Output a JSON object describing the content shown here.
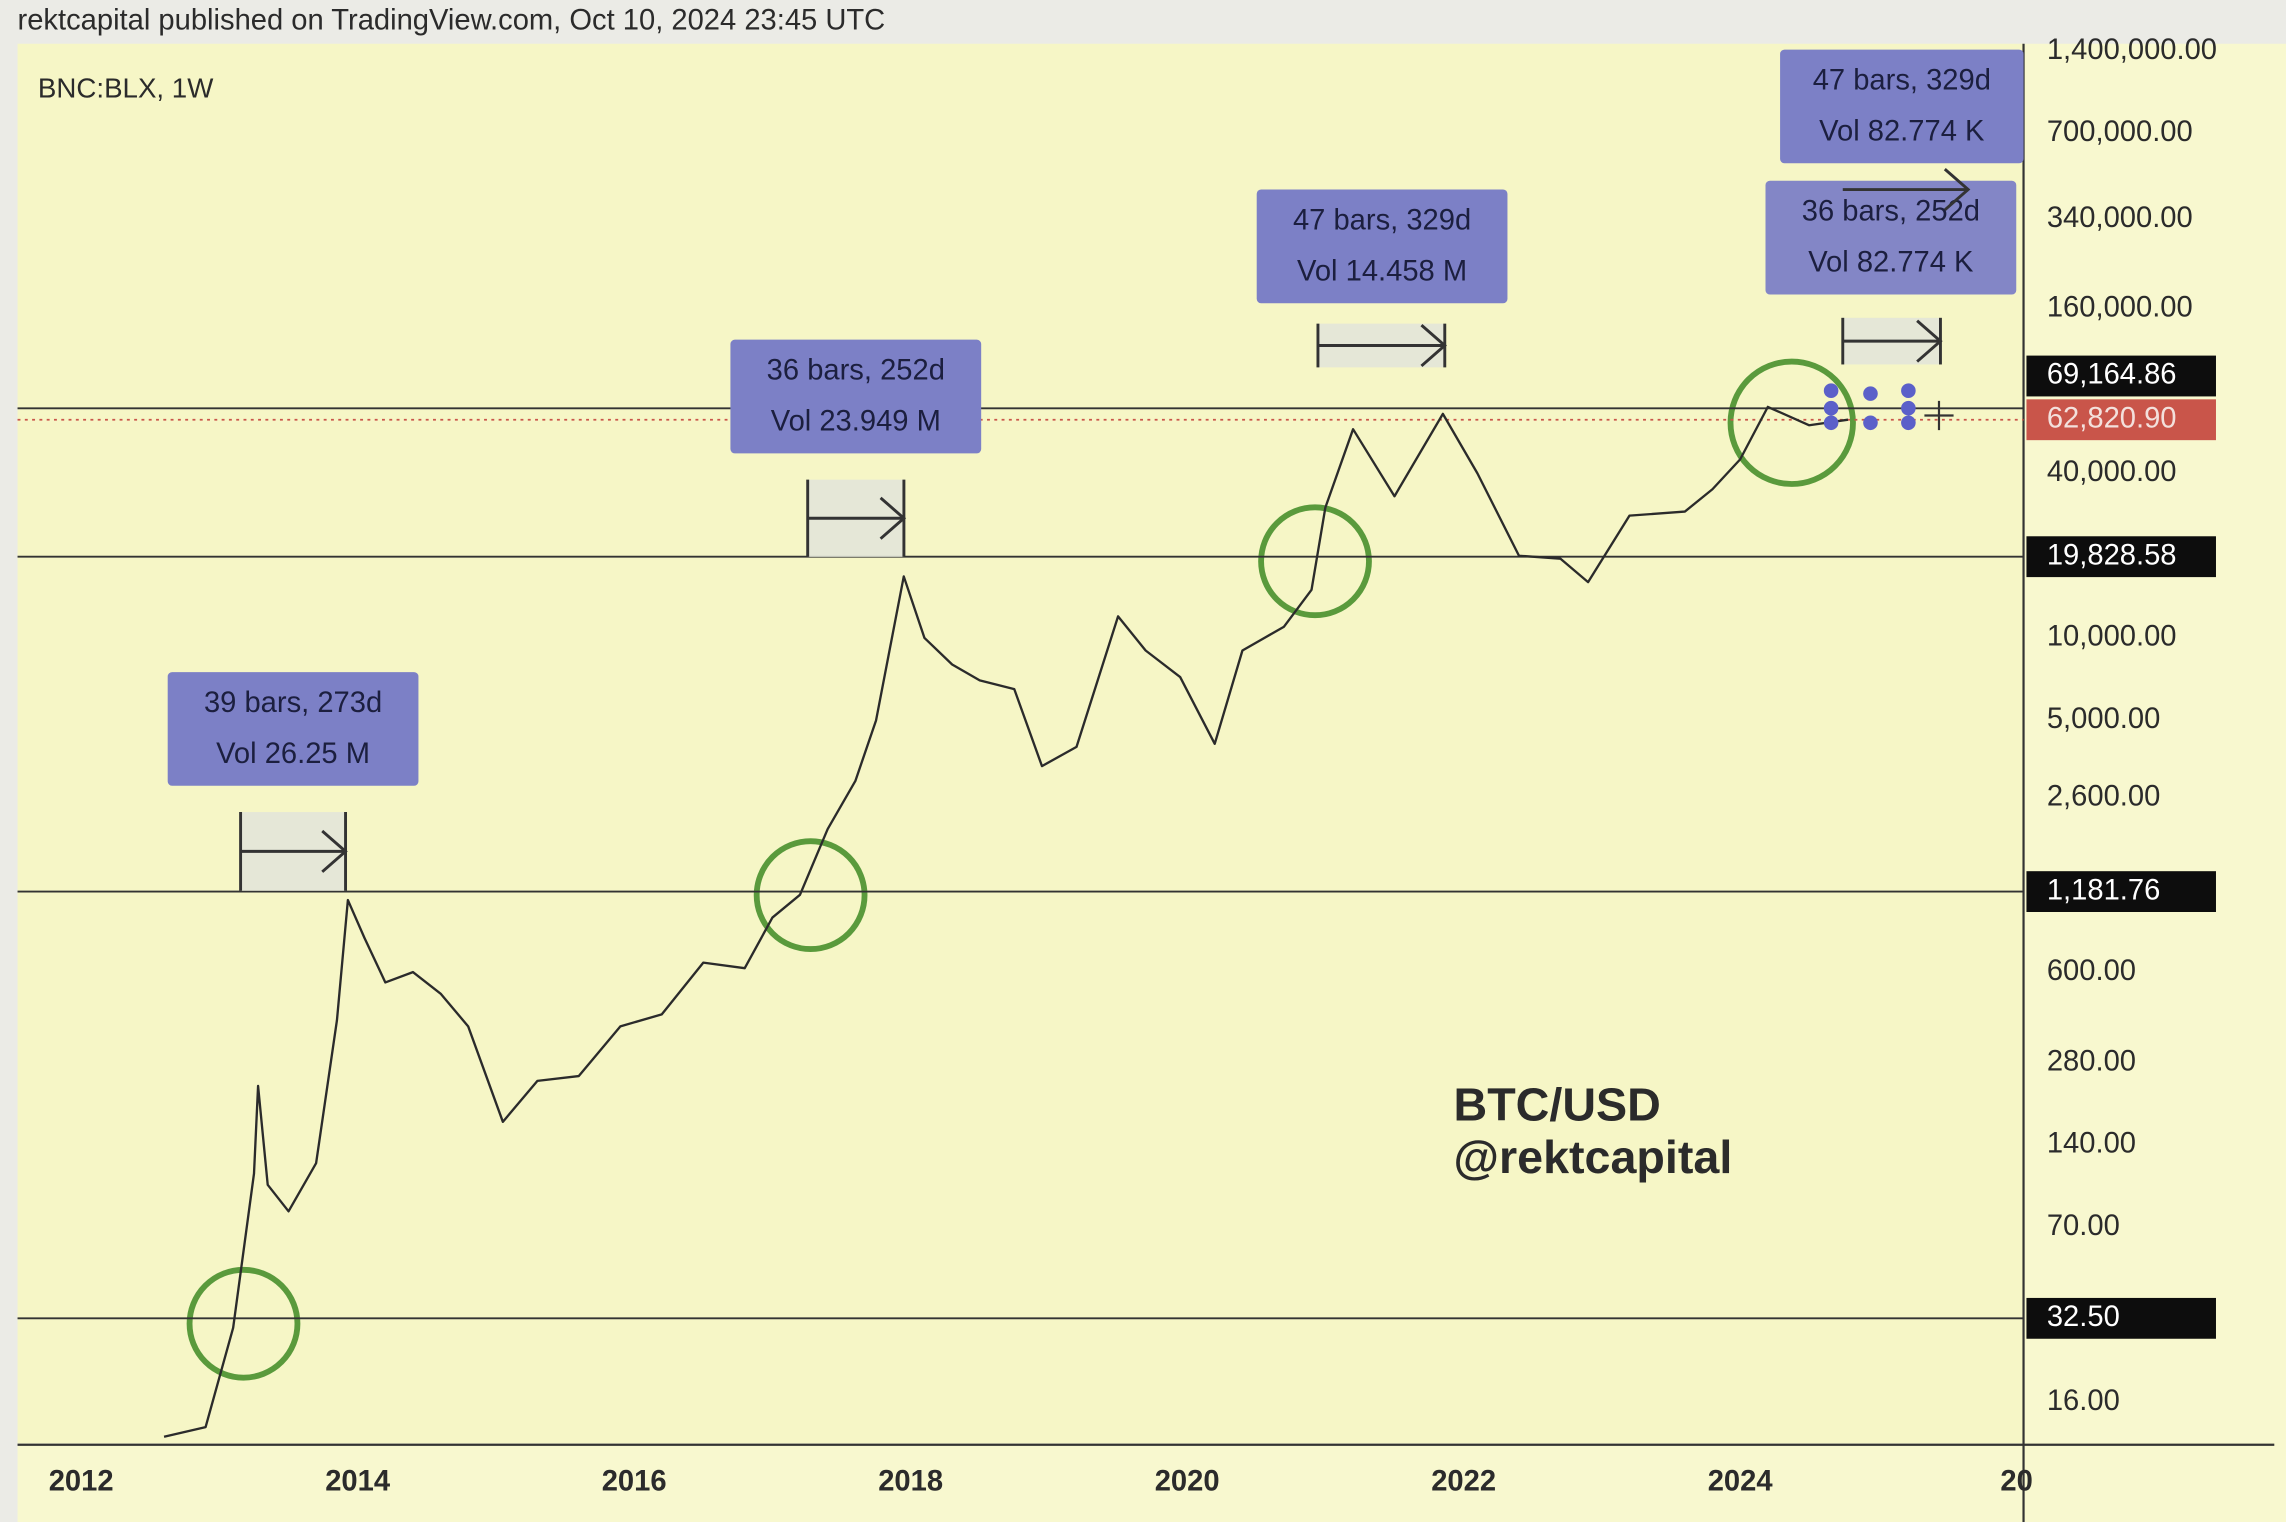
{
  "header": {
    "publisher_line": "rektcapital published on TradingView.com, Oct 10, 2024 23:45 UTC"
  },
  "chart_data": {
    "type": "line",
    "symbol": "BNC:BLX, 1W",
    "watermark": [
      "BTC/USD",
      "@rektcapital"
    ],
    "log_scale": true,
    "color": "#2b2b2b",
    "x": [
      2012.6,
      2012.9,
      2013.1,
      2013.25,
      2013.28,
      2013.35,
      2013.5,
      2013.7,
      2013.85,
      2013.93,
      2014.05,
      2014.2,
      2014.4,
      2014.6,
      2014.8,
      2015.05,
      2015.3,
      2015.6,
      2015.9,
      2016.2,
      2016.5,
      2016.8,
      2017.0,
      2017.2,
      2017.4,
      2017.6,
      2017.75,
      2017.95,
      2018.1,
      2018.3,
      2018.5,
      2018.75,
      2018.95,
      2019.2,
      2019.5,
      2019.7,
      2019.95,
      2020.2,
      2020.4,
      2020.7,
      2020.9,
      2021.0,
      2021.2,
      2021.5,
      2021.85,
      2022.1,
      2022.4,
      2022.7,
      2022.9,
      2023.2,
      2023.6,
      2023.8,
      2024.0,
      2024.2,
      2024.5,
      2024.78
    ],
    "values": [
      12,
      13,
      30,
      110,
      230,
      100,
      80,
      120,
      400,
      1100,
      800,
      550,
      600,
      500,
      380,
      170,
      240,
      250,
      380,
      420,
      650,
      620,
      950,
      1150,
      2000,
      3000,
      5000,
      16800,
      10000,
      8000,
      7000,
      6500,
      3400,
      4000,
      12000,
      9000,
      7200,
      4100,
      9000,
      11000,
      15000,
      30000,
      58000,
      33000,
      66000,
      40000,
      20000,
      19500,
      16000,
      28000,
      29000,
      35000,
      45000,
      70000,
      60000,
      62820.9
    ],
    "xlim": [
      2011.54,
      2026.05
    ],
    "ylim": [
      11.35,
      1490000
    ],
    "xticks": [
      2012,
      2014,
      2016,
      2018,
      2020,
      2022,
      2024,
      {
        "value": 2026,
        "label": "20"
      }
    ],
    "yticks": [
      {
        "value": 16,
        "label": "16.00"
      },
      {
        "value": 70,
        "label": "70.00"
      },
      {
        "value": 140,
        "label": "140.00"
      },
      {
        "value": 280,
        "label": "280.00"
      },
      {
        "value": 600,
        "label": "600.00"
      },
      {
        "value": 2600,
        "label": "2,600.00"
      },
      {
        "value": 5000,
        "label": "5,000.00"
      },
      {
        "value": 10000,
        "label": "10,000.00"
      },
      {
        "value": 40000,
        "label": "40,000.00"
      },
      {
        "value": 160000,
        "label": "160,000.00"
      },
      {
        "value": 340000,
        "label": "340,000.00"
      },
      {
        "value": 700000,
        "label": "700,000.00"
      },
      {
        "value": 1400000,
        "label": "1,400,000.00"
      }
    ],
    "price_lines": [
      {
        "value": 69164.86,
        "label": "69,164.86"
      },
      {
        "value": 19828.58,
        "label": "19,828.58"
      },
      {
        "value": 1181.76,
        "label": "1,181.76"
      },
      {
        "value": 32.5,
        "label": "32.50"
      }
    ],
    "last_price": {
      "value": 62820.9,
      "label": "62,820.90",
      "color": "#c9554a"
    },
    "measurements": [
      {
        "bars": "39 bars, 273d",
        "vol": "Vol 26.25 M"
      },
      {
        "bars": "36 bars, 252d",
        "vol": "Vol 23.949 M"
      },
      {
        "bars": "47 bars, 329d",
        "vol": "Vol 14.458 M"
      },
      {
        "bars": "36 bars, 252d",
        "vol": "Vol 82.774 K"
      },
      {
        "bars": "47 bars, 329d",
        "vol": "Vol 82.774 K"
      }
    ]
  }
}
